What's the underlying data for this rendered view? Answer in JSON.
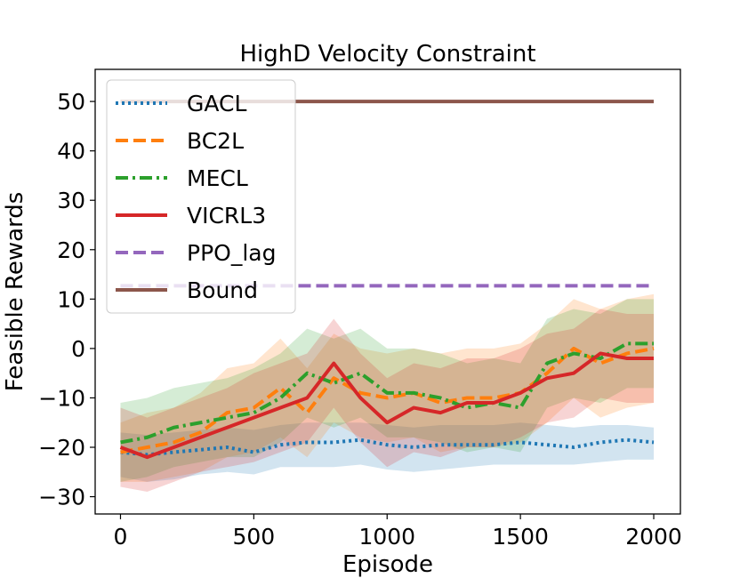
{
  "chart_data": {
    "type": "line",
    "title": "HighD Velocity Constraint",
    "xlabel": "Episode",
    "ylabel": "Feasible Rewards",
    "xlim": [
      -95,
      2100
    ],
    "ylim": [
      -33.5,
      56.5
    ],
    "xticks": [
      0,
      500,
      1000,
      1500,
      2000
    ],
    "yticks": [
      -30,
      -20,
      -10,
      0,
      10,
      20,
      30,
      40,
      50
    ],
    "xtick_labels": [
      "0",
      "500",
      "1000",
      "1500",
      "2000"
    ],
    "ytick_labels": [
      "−30",
      "−20",
      "−10",
      "0",
      "10",
      "20",
      "30",
      "40",
      "50"
    ],
    "grid": false,
    "legend_position": "top-left",
    "series": [
      {
        "name": "GACL",
        "color": "#1f77b4",
        "style": "dotted",
        "x": [
          0,
          100,
          200,
          300,
          400,
          500,
          600,
          700,
          800,
          900,
          1000,
          1100,
          1200,
          1300,
          1400,
          1500,
          1600,
          1700,
          1800,
          1900,
          2000
        ],
        "values": [
          -21,
          -21.5,
          -21,
          -20.5,
          -20,
          -21,
          -19.5,
          -19,
          -19,
          -18.5,
          -19.5,
          -20,
          -19.5,
          -19.5,
          -19.5,
          -19,
          -19.5,
          -20,
          -19,
          -18.5,
          -19
        ],
        "lower": [
          -26,
          -27,
          -26.5,
          -25.5,
          -25,
          -25.5,
          -24,
          -24,
          -24,
          -23.5,
          -24.5,
          -25,
          -24.5,
          -24,
          -23.5,
          -23.5,
          -23.5,
          -23.5,
          -23,
          -22.5,
          -22.5
        ],
        "upper": [
          -17,
          -17.5,
          -17,
          -16.5,
          -16,
          -16.5,
          -15.5,
          -15,
          -15,
          -15,
          -15.5,
          -16,
          -15.5,
          -15.5,
          -15.5,
          -15,
          -15.5,
          -16,
          -15.5,
          -15.5,
          -16
        ]
      },
      {
        "name": "BC2L",
        "color": "#ff7f0e",
        "style": "dashed",
        "x": [
          0,
          100,
          200,
          300,
          400,
          500,
          600,
          700,
          800,
          900,
          1000,
          1100,
          1200,
          1300,
          1400,
          1500,
          1600,
          1700,
          1800,
          1900,
          2000
        ],
        "values": [
          -21,
          -20,
          -19,
          -17,
          -13,
          -12,
          -8,
          -13,
          -6,
          -9,
          -10,
          -9,
          -11,
          -10,
          -10,
          -9,
          -5,
          0,
          -3,
          -1,
          0
        ],
        "lower": [
          -27,
          -27,
          -26,
          -25,
          -22,
          -21,
          -18,
          -22,
          -15,
          -18,
          -19,
          -18,
          -21,
          -20,
          -20,
          -19,
          -15,
          -10,
          -14,
          -12,
          -11
        ],
        "upper": [
          -15,
          -13,
          -12,
          -9,
          -4,
          -3,
          2,
          -4,
          3,
          0,
          -1,
          0,
          -1,
          0,
          0,
          1,
          5,
          10,
          8,
          10,
          11
        ]
      },
      {
        "name": "MECL",
        "color": "#2ca02c",
        "style": "dashdot",
        "x": [
          0,
          100,
          200,
          300,
          400,
          500,
          600,
          700,
          800,
          900,
          1000,
          1100,
          1200,
          1300,
          1400,
          1500,
          1600,
          1700,
          1800,
          1900,
          2000
        ],
        "values": [
          -19,
          -18,
          -16,
          -15,
          -14,
          -13,
          -10,
          -5,
          -7,
          -5,
          -9,
          -9,
          -10,
          -12,
          -11,
          -12,
          -3,
          -1,
          -2,
          1,
          1
        ],
        "lower": [
          -27,
          -26,
          -24,
          -23,
          -22,
          -22,
          -19,
          -14,
          -16,
          -14,
          -18,
          -18,
          -19,
          -21,
          -20,
          -21,
          -12,
          -10,
          -11,
          -8,
          -8
        ],
        "upper": [
          -11,
          -10,
          -8,
          -7,
          -6,
          -4,
          -1,
          4,
          2,
          4,
          0,
          0,
          -1,
          -3,
          -2,
          -3,
          6,
          8,
          7,
          10,
          10
        ]
      },
      {
        "name": "VICRL3",
        "color": "#d62728",
        "style": "solid",
        "x": [
          0,
          100,
          200,
          300,
          400,
          500,
          600,
          700,
          800,
          900,
          1000,
          1100,
          1200,
          1300,
          1400,
          1500,
          1600,
          1700,
          1800,
          1900,
          2000
        ],
        "values": [
          -20,
          -22,
          -20,
          -18,
          -16,
          -14,
          -12,
          -10,
          -3,
          -10,
          -15,
          -12,
          -13,
          -11,
          -11,
          -9,
          -6,
          -5,
          -1,
          -2,
          -2
        ],
        "lower": [
          -28,
          -29,
          -27,
          -25,
          -24,
          -23,
          -21,
          -19,
          -12,
          -19,
          -24,
          -21,
          -22,
          -20,
          -20,
          -18,
          -15,
          -14,
          -10,
          -11,
          -11
        ],
        "upper": [
          -12,
          -14,
          -12,
          -10,
          -8,
          -5,
          -3,
          -1,
          6,
          -1,
          -6,
          -3,
          -4,
          -2,
          -2,
          0,
          3,
          4,
          8,
          7,
          7
        ]
      },
      {
        "name": "PPO_lag",
        "color": "#9467bd",
        "style": "dashed",
        "x": [
          0,
          2000
        ],
        "values": [
          12.7,
          12.7
        ]
      },
      {
        "name": "Bound",
        "color": "#8c564b",
        "style": "solid",
        "x": [
          0,
          2000
        ],
        "values": [
          50,
          50
        ]
      }
    ]
  }
}
